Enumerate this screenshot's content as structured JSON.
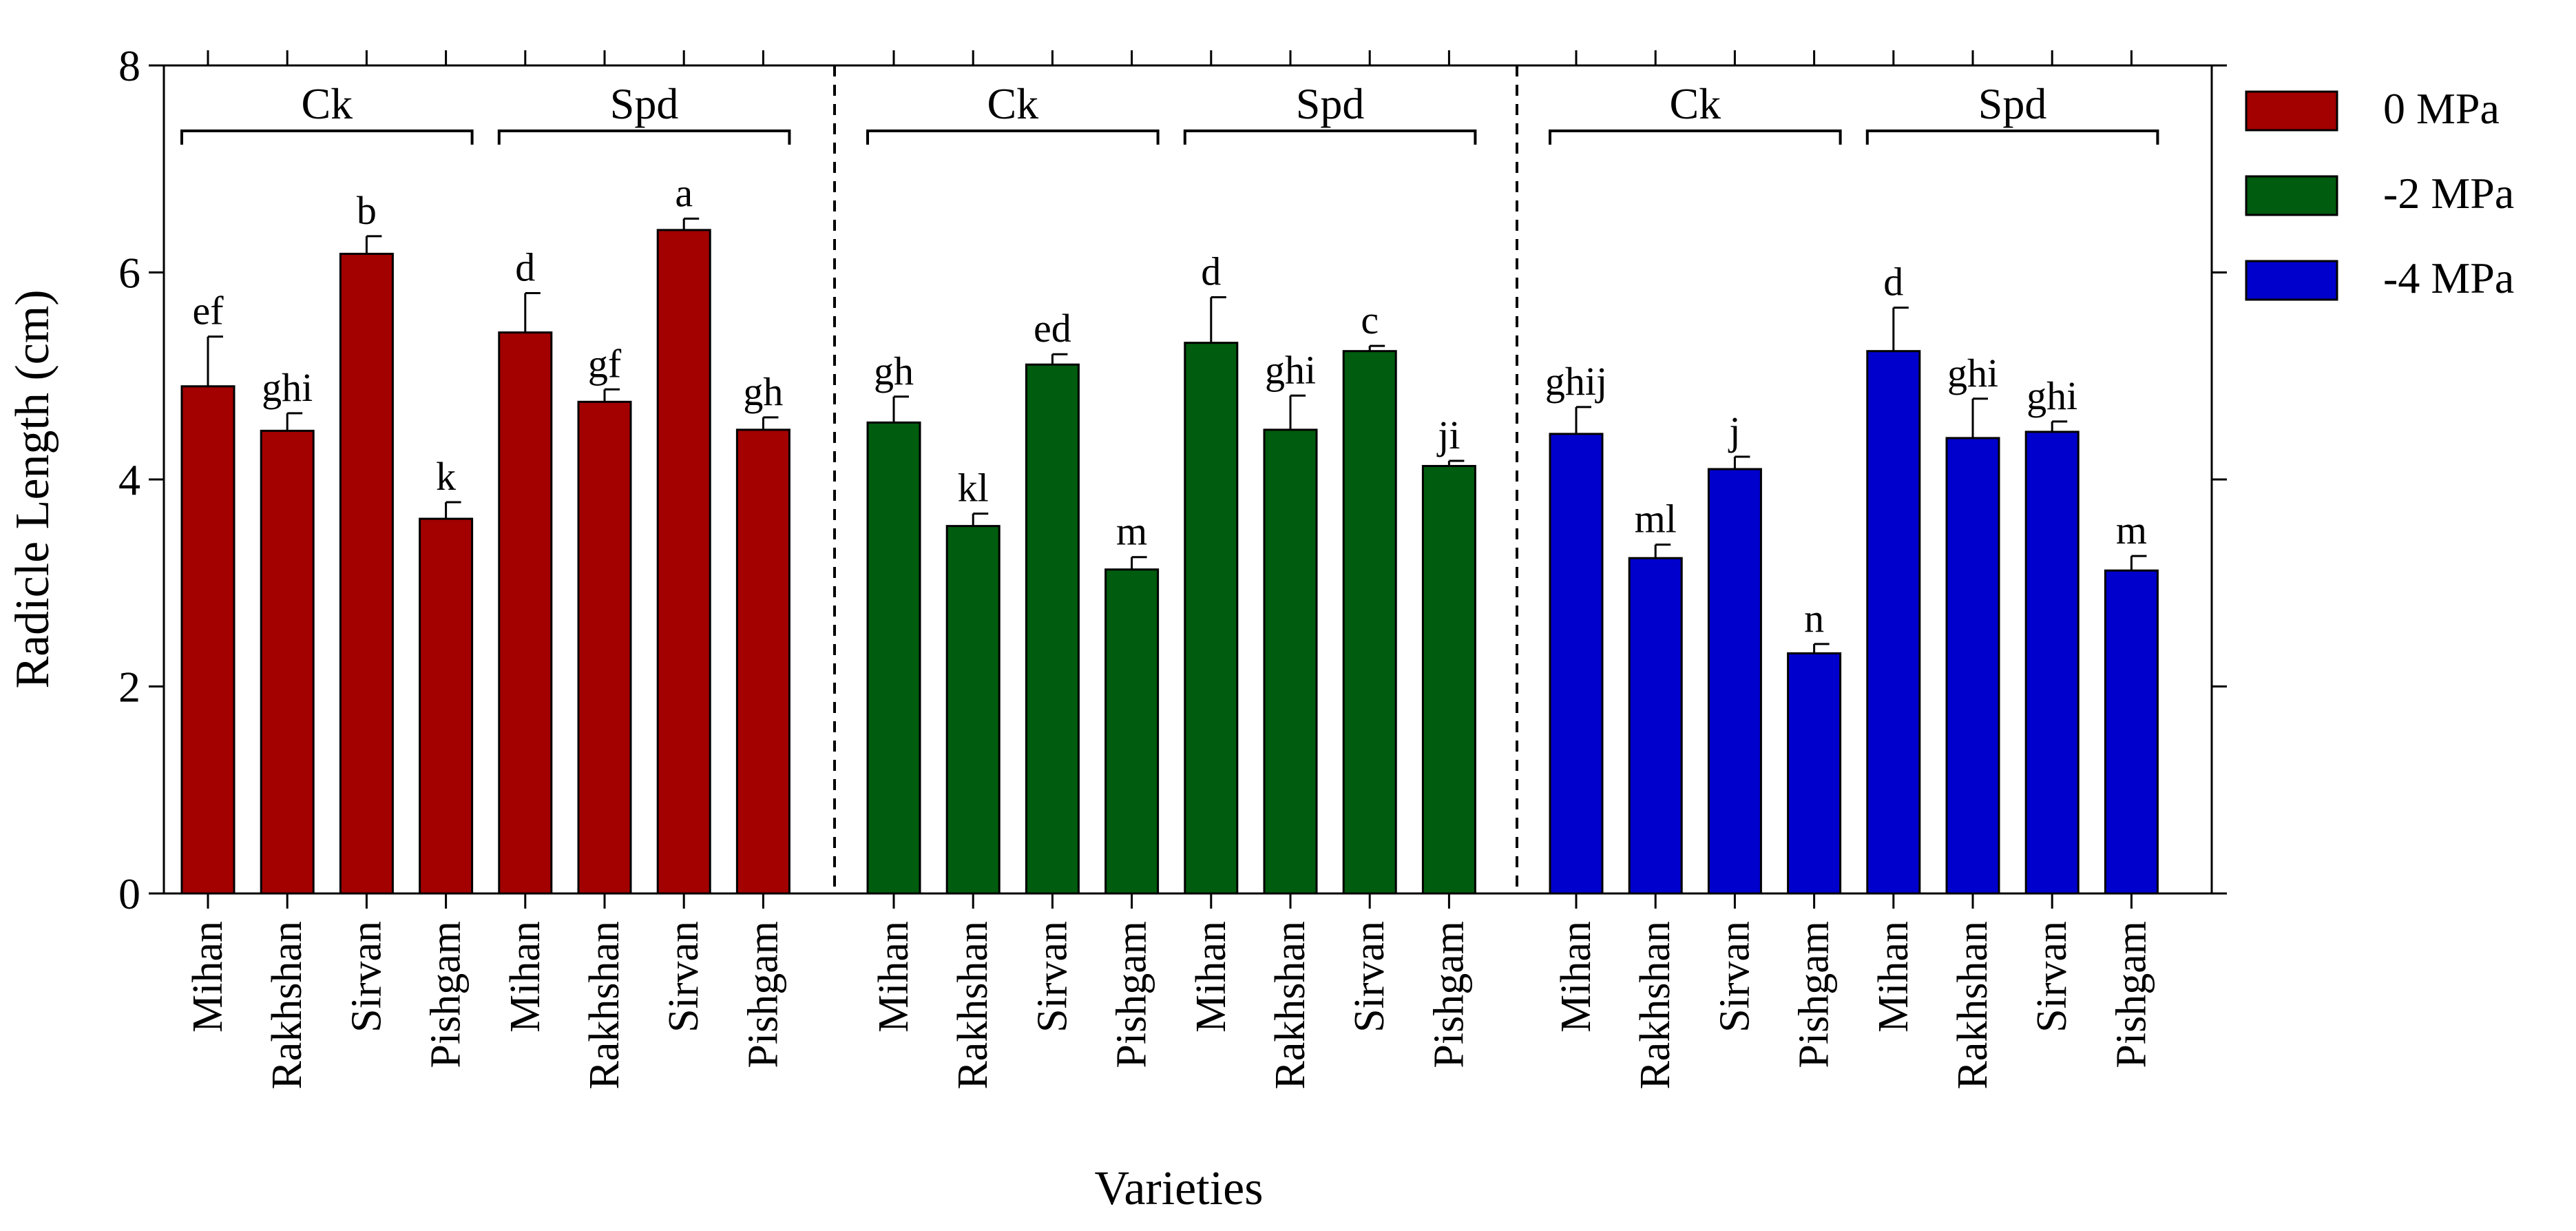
{
  "chart_data": {
    "type": "bar",
    "title": "",
    "xlabel": "Varieties",
    "ylabel": "Radicle Length (cm)",
    "ylim": [
      0,
      8
    ],
    "yticks": [
      "0",
      "2",
      "4",
      "6",
      "8"
    ],
    "grid": false,
    "legend_position": "right",
    "legend": [
      {
        "label": "0 MPa",
        "color": "#a30000"
      },
      {
        "label": "-2 MPa",
        "color": "#005c0e"
      },
      {
        "label": "-4 MPa",
        "color": "#0000cc"
      }
    ],
    "panels": [
      {
        "series": "0 MPa",
        "color": "#a30000",
        "groups": [
          {
            "label": "Ck",
            "start": 0,
            "end": 3
          },
          {
            "label": "Spd",
            "start": 4,
            "end": 7
          }
        ],
        "categories": [
          "Mihan",
          "Rakhshan",
          "Sirvan",
          "Pishgam",
          "Mihan",
          "Rakhshan",
          "Sirvan",
          "Pishgam"
        ],
        "values": [
          4.9,
          4.47,
          6.18,
          3.62,
          5.42,
          4.75,
          6.41,
          4.48
        ],
        "errors": [
          0.48,
          0.17,
          0.17,
          0.16,
          0.38,
          0.12,
          0.11,
          0.12
        ],
        "letters": [
          "ef",
          "ghi",
          "b",
          "k",
          "d",
          "gf",
          "a",
          "gh"
        ]
      },
      {
        "series": "-2 MPa",
        "color": "#005c0e",
        "groups": [
          {
            "label": "Ck",
            "start": 0,
            "end": 3
          },
          {
            "label": "Spd",
            "start": 4,
            "end": 7
          }
        ],
        "categories": [
          "Mihan",
          "Rakhshan",
          "Sirvan",
          "Pishgam",
          "Mihan",
          "Rakhshan",
          "Sirvan",
          "Pishgam"
        ],
        "values": [
          4.55,
          3.55,
          5.11,
          3.13,
          5.32,
          4.48,
          5.24,
          4.13
        ],
        "errors": [
          0.25,
          0.12,
          0.1,
          0.12,
          0.44,
          0.33,
          0.05,
          0.05
        ],
        "letters": [
          "gh",
          "kl",
          "ed",
          "m",
          "d",
          "ghi",
          "c",
          "ji"
        ]
      },
      {
        "series": "-4 MPa",
        "color": "#0000cc",
        "groups": [
          {
            "label": "Ck",
            "start": 0,
            "end": 3
          },
          {
            "label": "Spd",
            "start": 4,
            "end": 7
          }
        ],
        "categories": [
          "Mihan",
          "Rakhshan",
          "Sirvan",
          "Pishgam",
          "Mihan",
          "Rakhshan",
          "Sirvan",
          "Pishgam"
        ],
        "values": [
          4.44,
          3.24,
          4.1,
          2.32,
          5.24,
          4.4,
          4.46,
          3.12
        ],
        "errors": [
          0.26,
          0.13,
          0.12,
          0.09,
          0.42,
          0.38,
          0.1,
          0.14
        ],
        "letters": [
          "ghij",
          "ml",
          "j",
          "n",
          "d",
          "ghi",
          "ghi",
          "m"
        ]
      }
    ]
  }
}
